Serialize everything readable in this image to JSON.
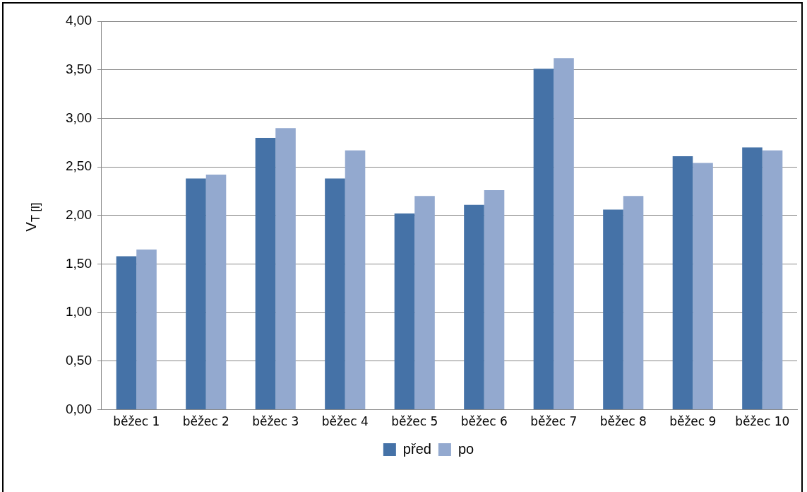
{
  "chart_data": {
    "type": "bar",
    "ylabel": "V$_{T [l]}$",
    "categories": [
      "běžec 1",
      "běžec 2",
      "běžec 3",
      "běžec 4",
      "běžec 5",
      "běžec 6",
      "běžec 7",
      "běžec 8",
      "běžec 9",
      "běžec 10"
    ],
    "series": [
      {
        "name": "před",
        "color": "#4572a7",
        "values": [
          1.58,
          2.38,
          2.8,
          2.38,
          2.02,
          2.11,
          3.51,
          2.06,
          2.61,
          2.7
        ]
      },
      {
        "name": "po",
        "color": "#93a9cf",
        "values": [
          1.65,
          2.42,
          2.9,
          2.67,
          2.2,
          2.26,
          3.62,
          2.2,
          2.54,
          2.67
        ]
      }
    ],
    "ylim": [
      0,
      4
    ],
    "yticks": [
      {
        "value": 0,
        "label": "0,00"
      },
      {
        "value": 0.5,
        "label": "0,50"
      },
      {
        "value": 1,
        "label": "1,00"
      },
      {
        "value": 1.5,
        "label": "1,50"
      },
      {
        "value": 2,
        "label": "2,00"
      },
      {
        "value": 2.5,
        "label": "2,50"
      },
      {
        "value": 3,
        "label": "3,00"
      },
      {
        "value": 3.5,
        "label": "3,50"
      },
      {
        "value": 4,
        "label": "4,00"
      }
    ],
    "grid": "y",
    "legend": "bottom"
  }
}
